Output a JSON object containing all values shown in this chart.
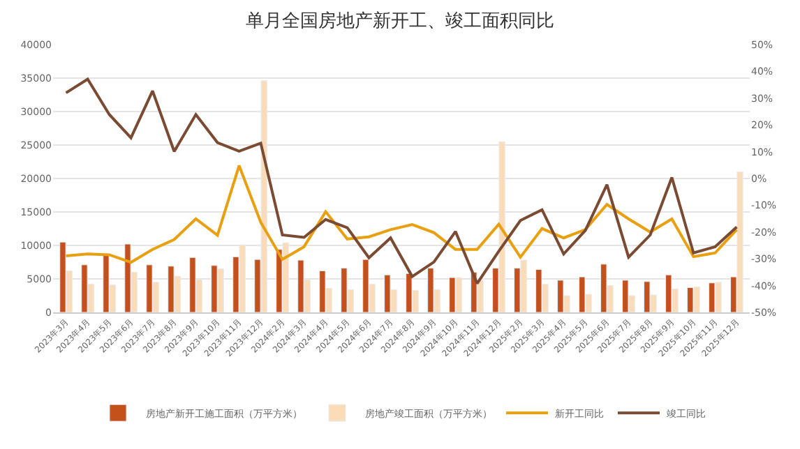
{
  "chart_data": {
    "type": "bar",
    "title": "单月全国房地产新开工、竣工面积同比",
    "categories": [
      "2023年3月",
      "2023年4月",
      "2023年5月",
      "2023年6月",
      "2023年7月",
      "2023年8月",
      "2023年9月",
      "2023年10月",
      "2023年11月",
      "2023年12月",
      "2024年2月",
      "2024年3月",
      "2024年4月",
      "2024年5月",
      "2024年6月",
      "2024年7月",
      "2024年8月",
      "2024年9月",
      "2024年10月",
      "2024年11月",
      "2024年12月",
      "2025年2月",
      "2025年3月",
      "2025年4月",
      "2025年5月",
      "2025年6月",
      "2025年7月",
      "2025年8月",
      "2025年9月",
      "2025年10月",
      "2025年11月",
      "2025年12月"
    ],
    "series": [
      {
        "name": "房地产新开工施工面积（万平方米）",
        "color": "#c4501b",
        "values": [
          10500,
          7100,
          8500,
          10200,
          7100,
          6900,
          8200,
          7000,
          8300,
          7900,
          9400,
          7800,
          6200,
          6600,
          7900,
          5600,
          5800,
          6600,
          5200,
          6000,
          6600,
          6600,
          6400,
          4800,
          5300,
          7200,
          4800,
          4600,
          5600,
          3700,
          4400,
          5300
        ]
      },
      {
        "name": "房地产竣工面积（万平方米）",
        "color": "#fbdcb8",
        "values": [
          6200,
          4200,
          4100,
          6000,
          4500,
          5400,
          4900,
          6500,
          10100,
          34600,
          10400,
          4900,
          3600,
          3400,
          4200,
          3400,
          3300,
          3400,
          5200,
          4800,
          25500,
          7800,
          4200,
          2500,
          2700,
          4000,
          2500,
          2600,
          3500,
          3800,
          4500,
          21000
        ]
      },
      {
        "name": "新开工同比",
        "type": "line",
        "axis": "y2",
        "color": "#e8a010",
        "values": [
          -28.9,
          -28.2,
          -28.5,
          -31.3,
          -26.5,
          -22.8,
          -15.1,
          -21.2,
          4.8,
          -16.4,
          -30.2,
          -25.5,
          -12.4,
          -22.6,
          -21.8,
          -19.1,
          -17.2,
          -20.2,
          -26.5,
          -26.5,
          -17.1,
          -29.4,
          -18.7,
          -22.2,
          -19.1,
          -9.7,
          -15.1,
          -20.0,
          -15.1,
          -29.2,
          -27.8,
          -19.1
        ]
      },
      {
        "name": "竣工同比",
        "type": "line",
        "axis": "y2",
        "color": "#7a4a33",
        "values": [
          32.0,
          37.1,
          23.9,
          15.2,
          32.7,
          10.1,
          23.9,
          13.4,
          10.2,
          13.2,
          -21.1,
          -22.0,
          -15.3,
          -18.4,
          -29.6,
          -22.2,
          -36.6,
          -31.2,
          -19.8,
          -39.2,
          -27.2,
          -15.7,
          -11.7,
          -28.2,
          -19.4,
          -2.3,
          -29.4,
          -21.1,
          0.4,
          -27.8,
          -25.5,
          -18.1
        ]
      }
    ],
    "ylim": [
      0,
      40000
    ],
    "yticks": [
      0,
      5000,
      10000,
      15000,
      20000,
      25000,
      30000,
      35000,
      40000
    ],
    "y2lim": [
      -50,
      50
    ],
    "y2ticks": [
      {
        "value": -50,
        "label": "-50%"
      },
      {
        "value": -40,
        "label": "-40%"
      },
      {
        "value": -30,
        "label": "-30%"
      },
      {
        "value": -20,
        "label": "-20%"
      },
      {
        "value": -10,
        "label": "-10%"
      },
      {
        "value": 0,
        "label": "0%"
      },
      {
        "value": 10,
        "label": "10%"
      },
      {
        "value": 20,
        "label": "20%"
      },
      {
        "value": 30,
        "label": "30%"
      },
      {
        "value": 40,
        "label": "40%"
      },
      {
        "value": 50,
        "label": "50%"
      }
    ],
    "grid": "y",
    "legend": "bottom",
    "marker": "none",
    "line_style": "solid"
  }
}
